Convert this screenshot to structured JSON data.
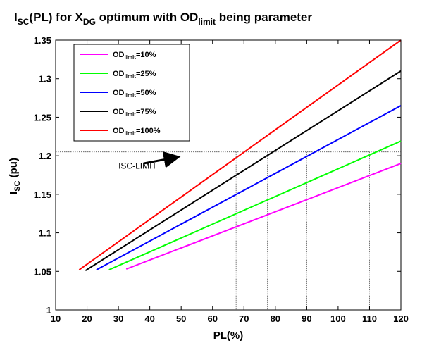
{
  "chart_data": {
    "type": "line",
    "title": {
      "main": "I",
      "sub1": "SC",
      "mid1": "(PL) for X",
      "sub2": "DG",
      "mid2": " optimum with OD",
      "sub3": "limit",
      "end": " being parameter"
    },
    "xlabel": "PL(%)",
    "ylabel": {
      "main": "I",
      "sub": "SC",
      "end": " (pu)"
    },
    "xlim": [
      10,
      120
    ],
    "ylim": [
      1,
      1.35
    ],
    "xticks": [
      10,
      20,
      30,
      40,
      50,
      60,
      70,
      80,
      90,
      100,
      110,
      120
    ],
    "yticks": [
      1,
      1.05,
      1.1,
      1.15,
      1.2,
      1.25,
      1.3,
      1.35
    ],
    "ytick_labels": [
      "1",
      "1.05",
      "1.1",
      "1.15",
      "1.2",
      "1.25",
      "1.3",
      "1.35"
    ],
    "grid": false,
    "legend_position": "top-left",
    "series": [
      {
        "name": "OD_limit=10%",
        "legend": {
          "main": "OD",
          "sub": "limit",
          "end": "=10%"
        },
        "color": "#ff00ff",
        "x": [
          32.5,
          120
        ],
        "y": [
          1.053,
          1.19
        ]
      },
      {
        "name": "OD_limit=25%",
        "legend": {
          "main": "OD",
          "sub": "limit",
          "end": "=25%"
        },
        "color": "#00ff00",
        "x": [
          27,
          120
        ],
        "y": [
          1.052,
          1.219
        ]
      },
      {
        "name": "OD_limit=50%",
        "legend": {
          "main": "OD",
          "sub": "limit",
          "end": "=50%"
        },
        "color": "#0000ff",
        "x": [
          23,
          120
        ],
        "y": [
          1.052,
          1.265
        ]
      },
      {
        "name": "OD_limit=75%",
        "legend": {
          "main": "OD",
          "sub": "limit",
          "end": "=75%"
        },
        "color": "#000000",
        "x": [
          19.5,
          120
        ],
        "y": [
          1.051,
          1.31
        ]
      },
      {
        "name": "OD_limit=100%",
        "legend": {
          "main": "OD",
          "sub": "limit",
          "end": "=100%"
        },
        "color": "#ff0000",
        "x": [
          17.5,
          120
        ],
        "y": [
          1.052,
          1.35
        ]
      }
    ],
    "annotations": {
      "limit_label": "ISC-LIMIT",
      "limit_value": 1.205,
      "limit_arrow_from": [
        38,
        1.19
      ],
      "limit_arrow_to": [
        48.5,
        1.198
      ],
      "crossing_x": [
        67.5,
        77.5,
        90,
        110
      ]
    }
  }
}
